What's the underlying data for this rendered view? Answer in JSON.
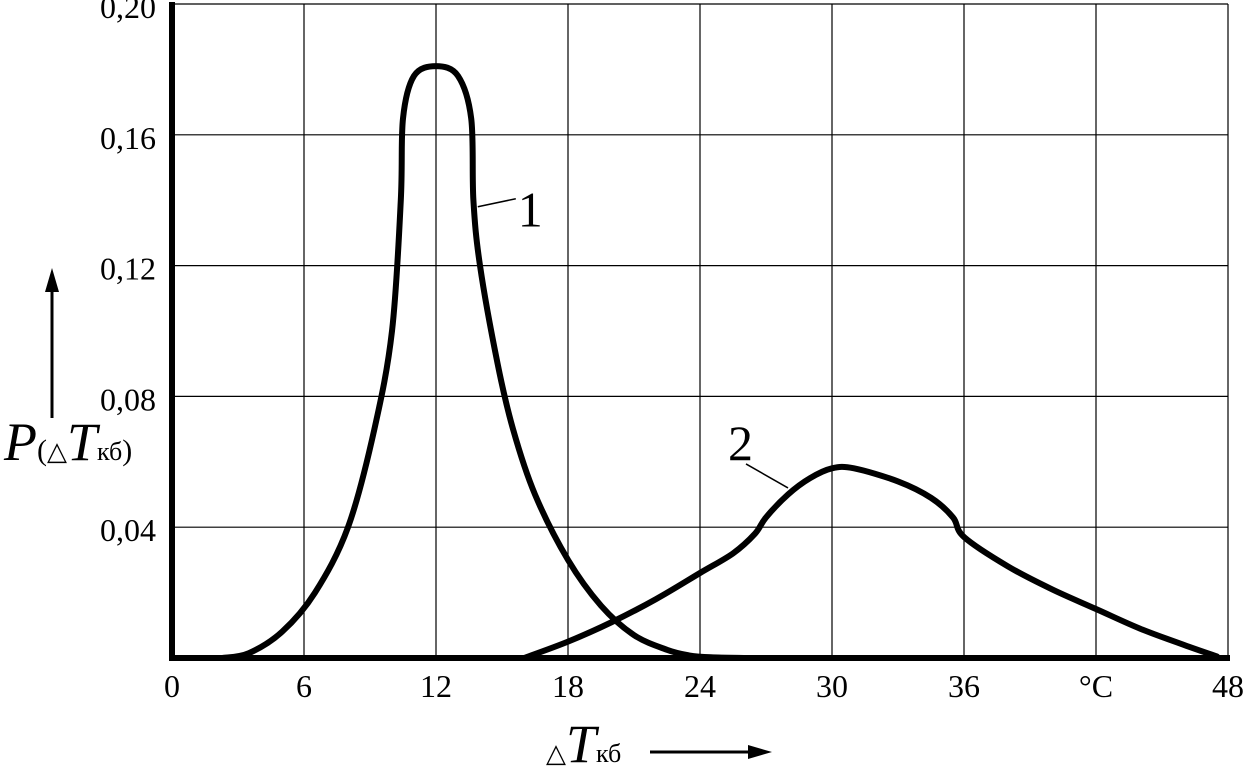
{
  "chart_data": {
    "type": "line",
    "title": "",
    "xlim": [
      0,
      48
    ],
    "ylim": [
      0,
      0.2
    ],
    "grid": true,
    "x_ticks": [
      0,
      6,
      12,
      18,
      24,
      30,
      36,
      42,
      48
    ],
    "x_tick_labels": [
      "0",
      "6",
      "12",
      "18",
      "24",
      "30",
      "36",
      "°C",
      "48"
    ],
    "y_ticks": [
      0.04,
      0.08,
      0.12,
      0.16,
      0.2
    ],
    "y_tick_labels": [
      "0,04",
      "0,08",
      "0,12",
      "0,16",
      "0,20"
    ],
    "xlabel": {
      "delta": "△",
      "symbol": "T",
      "subscript": "кб"
    },
    "ylabel": {
      "symbol": "P",
      "open": "(",
      "delta": "△",
      "var": "T",
      "subscript": "кб",
      "close": ")"
    },
    "series": [
      {
        "name": "1",
        "x": [
          2.3,
          3.5,
          5,
          6.5,
          8,
          9.2,
          10,
          10.4,
          10.5,
          11,
          12,
          13,
          13.6,
          13.7,
          14,
          14.8,
          15.5,
          16.5,
          18,
          19.5,
          21,
          22.5,
          23.5,
          24.5,
          26
        ],
        "y": [
          0,
          0.0015,
          0.008,
          0.02,
          0.04,
          0.07,
          0.1,
          0.14,
          0.165,
          0.178,
          0.181,
          0.178,
          0.165,
          0.14,
          0.12,
          0.09,
          0.07,
          0.05,
          0.03,
          0.016,
          0.007,
          0.0025,
          0.0008,
          0.0002,
          0
        ]
      },
      {
        "name": "2",
        "x": [
          16,
          18,
          20,
          22,
          24,
          25.5,
          26.5,
          27,
          28,
          29,
          30,
          31,
          33,
          34.5,
          35.5,
          36,
          38,
          40,
          42,
          44,
          46,
          47.5
        ],
        "y": [
          0,
          0.005,
          0.011,
          0.018,
          0.026,
          0.032,
          0.038,
          0.043,
          0.05,
          0.055,
          0.058,
          0.058,
          0.054,
          0.049,
          0.043,
          0.037,
          0.028,
          0.021,
          0.015,
          0.009,
          0.004,
          0.0005
        ]
      }
    ],
    "annotations": [
      {
        "text": "1",
        "series": "1",
        "target": [
          13.9,
          0.138
        ]
      },
      {
        "text": "2",
        "series": "2",
        "target": [
          28,
          0.052
        ]
      }
    ]
  }
}
